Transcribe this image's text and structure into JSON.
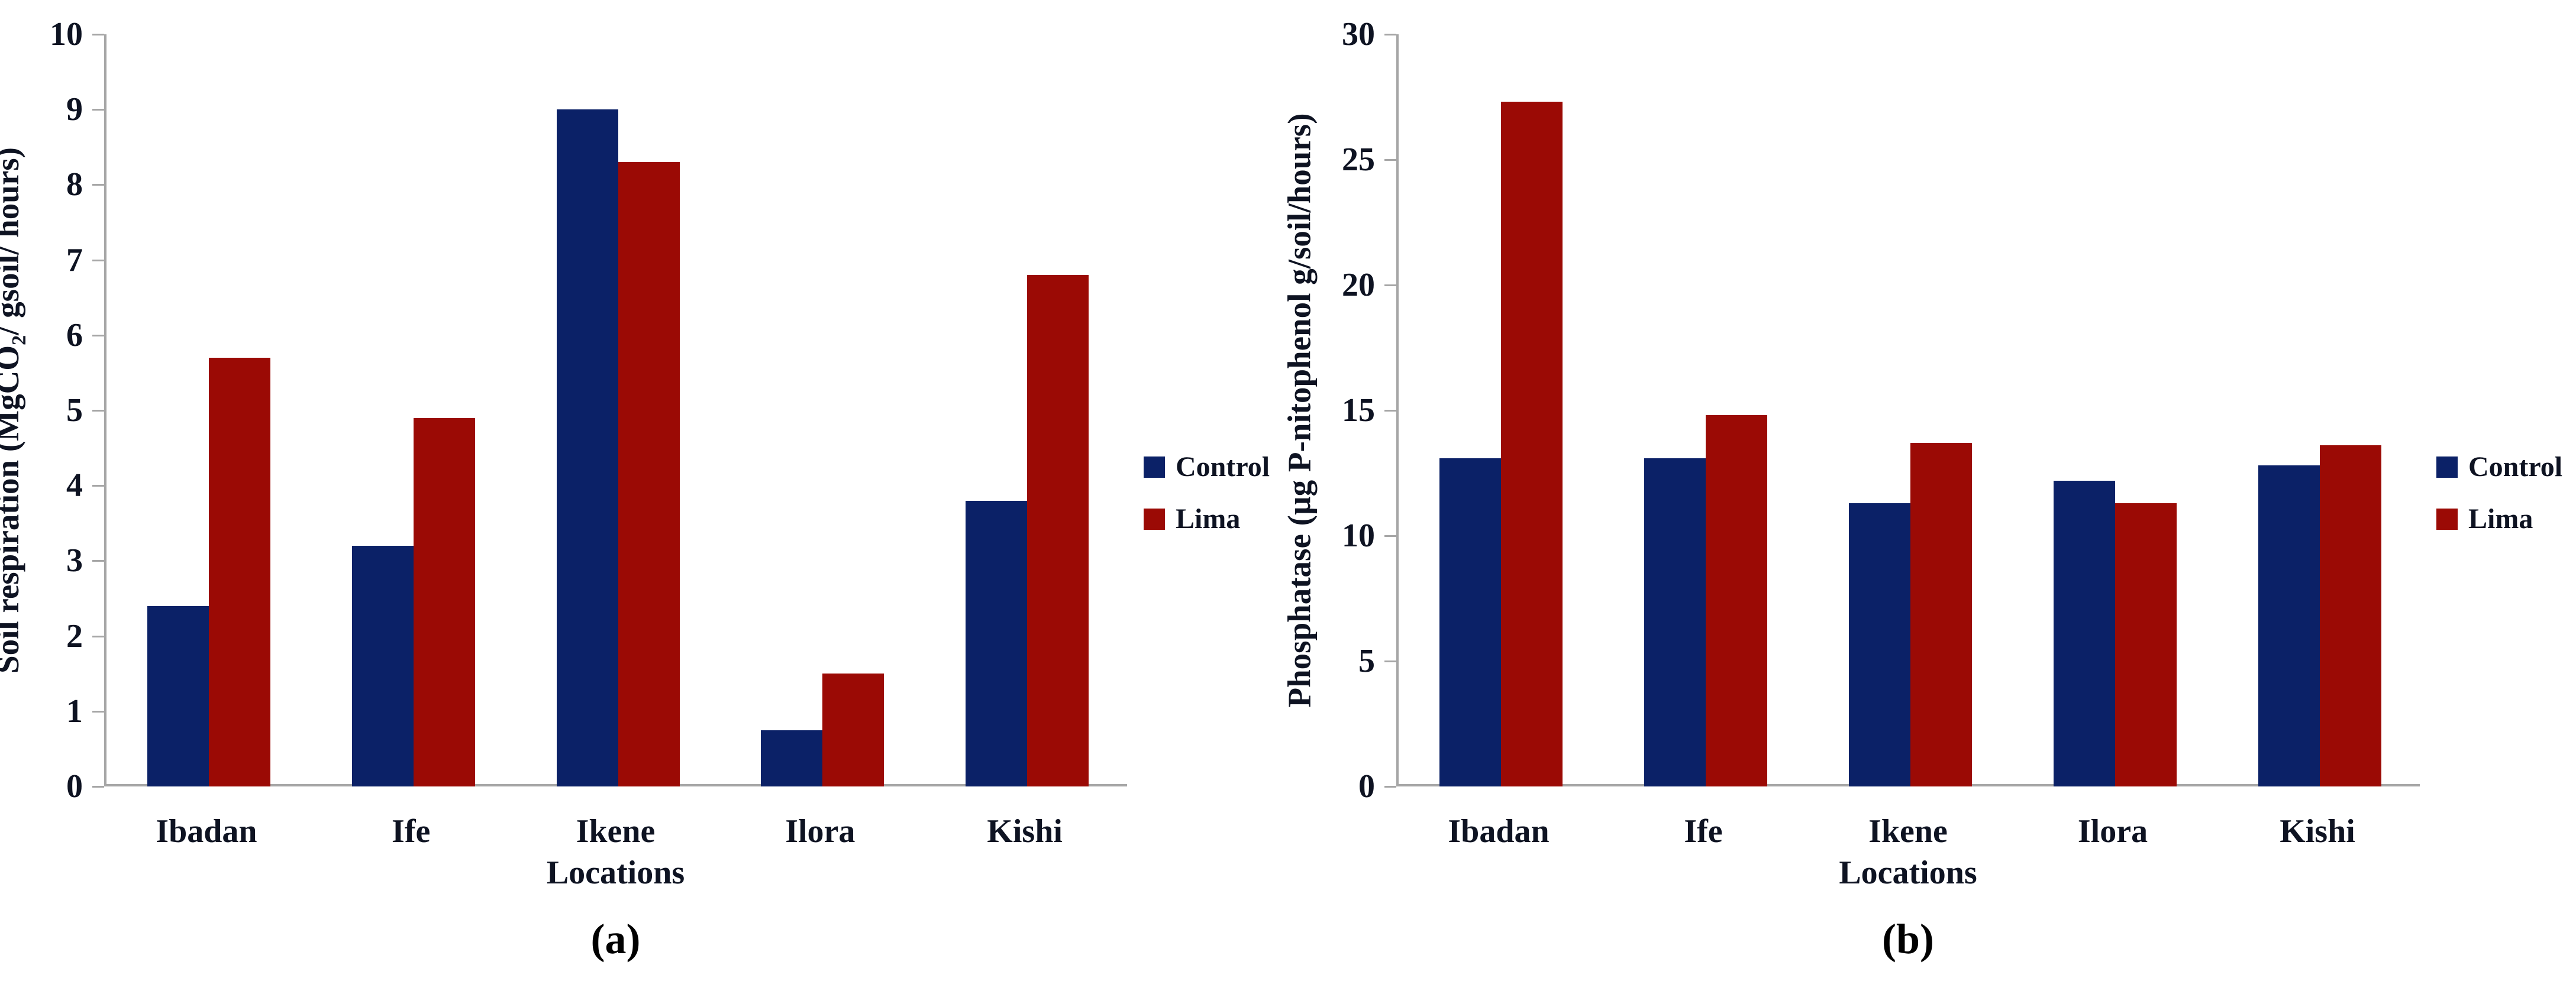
{
  "figure": {
    "background": "#ffffff",
    "colors": {
      "control": "#0b2167",
      "lima": "#9b0a05",
      "axis_line": "#a6a6a6",
      "text": "#0e1322"
    }
  },
  "chart_data": [
    {
      "id": "a",
      "type": "bar",
      "panel_label": "(a)",
      "xlabel": "Locations",
      "ylabel_prefix": "Soil respiration (MgCO",
      "ylabel_sub": "2",
      "ylabel_suffix": "/ gsoil/ hours)",
      "categories": [
        "Ibadan",
        "Ife",
        "Ikene",
        "Ilora",
        "Kishi"
      ],
      "series": [
        {
          "name": "Control",
          "color_key": "control",
          "values": [
            2.4,
            3.2,
            9.0,
            0.75,
            3.8
          ]
        },
        {
          "name": "Lima",
          "color_key": "lima",
          "values": [
            5.7,
            4.9,
            8.3,
            1.5,
            6.8
          ]
        }
      ],
      "ylim": [
        0,
        10
      ],
      "yticks": [
        0,
        1,
        2,
        3,
        4,
        5,
        6,
        7,
        8,
        9,
        10
      ],
      "legend_position": "right",
      "grid": false
    },
    {
      "id": "b",
      "type": "bar",
      "panel_label": "(b)",
      "xlabel": "Locations",
      "ylabel_prefix": "Phosphatase (µg P-nitophenol g/soil/hours)",
      "ylabel_sub": "",
      "ylabel_suffix": "",
      "categories": [
        "Ibadan",
        "Ife",
        "Ikene",
        "Ilora",
        "Kishi"
      ],
      "series": [
        {
          "name": "Control",
          "color_key": "control",
          "values": [
            13.1,
            13.1,
            11.3,
            12.2,
            12.8
          ]
        },
        {
          "name": "Lima",
          "color_key": "lima",
          "values": [
            27.3,
            14.8,
            13.7,
            11.3,
            13.6
          ]
        }
      ],
      "ylim": [
        0,
        30
      ],
      "yticks": [
        0,
        5,
        10,
        15,
        20,
        25,
        30
      ],
      "legend_position": "right",
      "grid": false
    }
  ]
}
